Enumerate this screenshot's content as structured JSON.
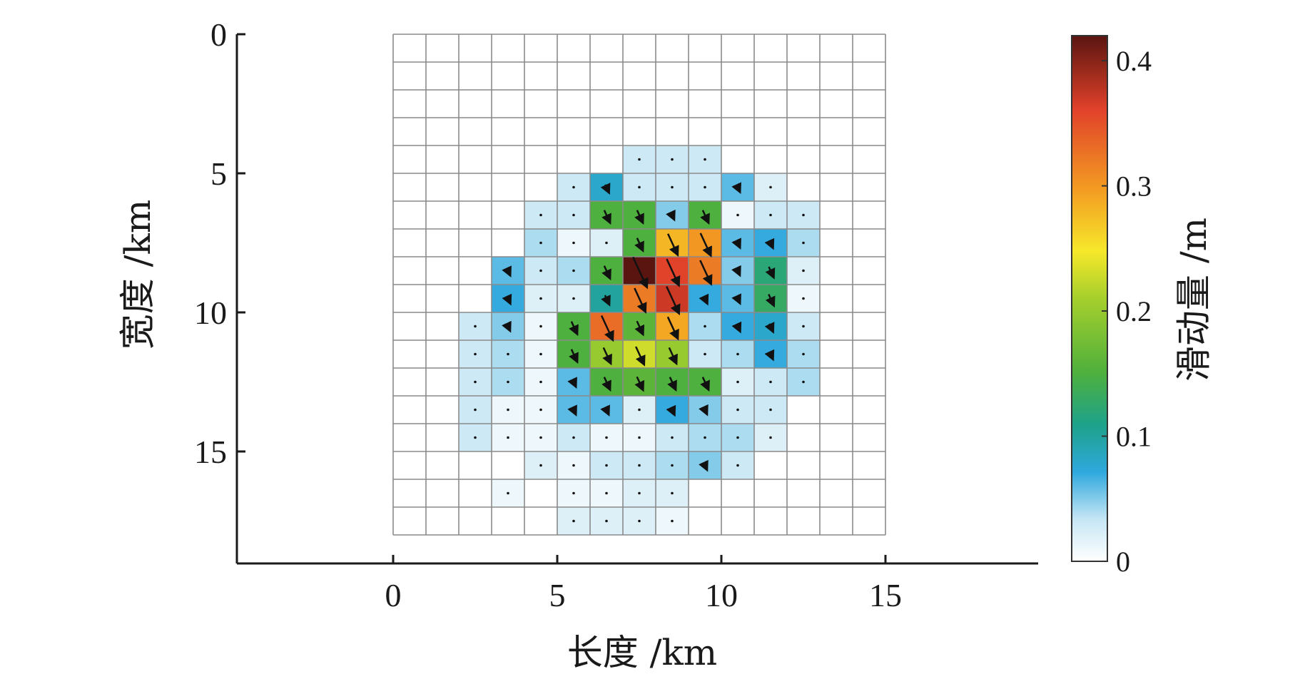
{
  "chart_data": {
    "type": "heatmap",
    "xlabel": "长度 /km",
    "ylabel": "宽度 /km",
    "xlim": [
      -5,
      20
    ],
    "ylim": [
      0,
      19
    ],
    "y_inverted": true,
    "xticks": [
      "0",
      "5",
      "10",
      "15"
    ],
    "yticks": [
      "0",
      "5",
      "10",
      "15"
    ],
    "grid": {
      "x0": 0,
      "y0": 0,
      "cell_size": 1,
      "cols": 15,
      "rows": 18
    },
    "colorbar": {
      "label": "滑动量 /m",
      "range": [
        0,
        0.42
      ],
      "ticks": [
        "0",
        "0.1",
        "0.2",
        "0.3",
        "0.4"
      ],
      "placement": "right"
    },
    "rake_arrows": "black arrows on each subfault, length proportional to slip",
    "slip_matrix": [
      [
        0,
        0,
        0,
        0,
        0,
        0,
        0,
        0,
        0,
        0,
        0,
        0,
        0,
        0,
        0
      ],
      [
        0,
        0,
        0,
        0,
        0,
        0,
        0,
        0,
        0,
        0,
        0,
        0,
        0,
        0,
        0
      ],
      [
        0,
        0,
        0,
        0,
        0,
        0,
        0,
        0,
        0,
        0,
        0,
        0,
        0,
        0,
        0
      ],
      [
        0,
        0,
        0,
        0,
        0,
        0,
        0,
        0,
        0,
        0,
        0,
        0,
        0,
        0,
        0
      ],
      [
        0,
        0,
        0,
        0,
        0,
        0,
        0,
        0.03,
        0.03,
        0.03,
        0,
        0,
        0,
        0,
        0
      ],
      [
        0,
        0,
        0,
        0,
        0,
        0.03,
        0.08,
        0.03,
        0.03,
        0.03,
        0.06,
        0.02,
        0,
        0,
        0
      ],
      [
        0,
        0,
        0,
        0,
        0.03,
        0.03,
        0.15,
        0.15,
        0.05,
        0.15,
        0.01,
        0.03,
        0.03,
        0,
        0
      ],
      [
        0,
        0,
        0,
        0,
        0.04,
        0.01,
        0.02,
        0.15,
        0.28,
        0.3,
        0.06,
        0.07,
        0.04,
        0,
        0
      ],
      [
        0,
        0,
        0,
        0.06,
        0.03,
        0.04,
        0.15,
        0.42,
        0.36,
        0.32,
        0.05,
        0.12,
        0.02,
        0,
        0
      ],
      [
        0,
        0,
        0,
        0.07,
        0.02,
        0.02,
        0.1,
        0.32,
        0.37,
        0.07,
        0.06,
        0.13,
        0.01,
        0,
        0
      ],
      [
        0,
        0,
        0.03,
        0.05,
        0.01,
        0.15,
        0.33,
        0.16,
        0.29,
        0.04,
        0.07,
        0.08,
        0.03,
        0,
        0
      ],
      [
        0,
        0,
        0.03,
        0.04,
        0.01,
        0.15,
        0.2,
        0.23,
        0.2,
        0.03,
        0.04,
        0.07,
        0.04,
        0,
        0
      ],
      [
        0,
        0,
        0.03,
        0.04,
        0.01,
        0.06,
        0.15,
        0.16,
        0.15,
        0.15,
        0.02,
        0.03,
        0.04,
        0,
        0
      ],
      [
        0,
        0,
        0.03,
        0.01,
        0.01,
        0.06,
        0.06,
        0.02,
        0.07,
        0.05,
        0.03,
        0.03,
        0,
        0,
        0
      ],
      [
        0,
        0,
        0.03,
        0.01,
        0.01,
        0.03,
        0.01,
        0.01,
        0.03,
        0.04,
        0.04,
        0.02,
        0,
        0,
        0
      ],
      [
        0,
        0,
        0,
        0,
        0.02,
        0.01,
        0.03,
        0.03,
        0.04,
        0.05,
        0.03,
        0,
        0,
        0,
        0
      ],
      [
        0,
        0,
        0,
        0.01,
        0,
        0.01,
        0.01,
        0.02,
        0.02,
        0,
        0,
        0,
        0,
        0,
        0
      ],
      [
        0,
        0,
        0,
        0,
        0,
        0.02,
        0.02,
        0.02,
        0.01,
        0,
        0,
        0,
        0,
        0,
        0
      ]
    ]
  }
}
